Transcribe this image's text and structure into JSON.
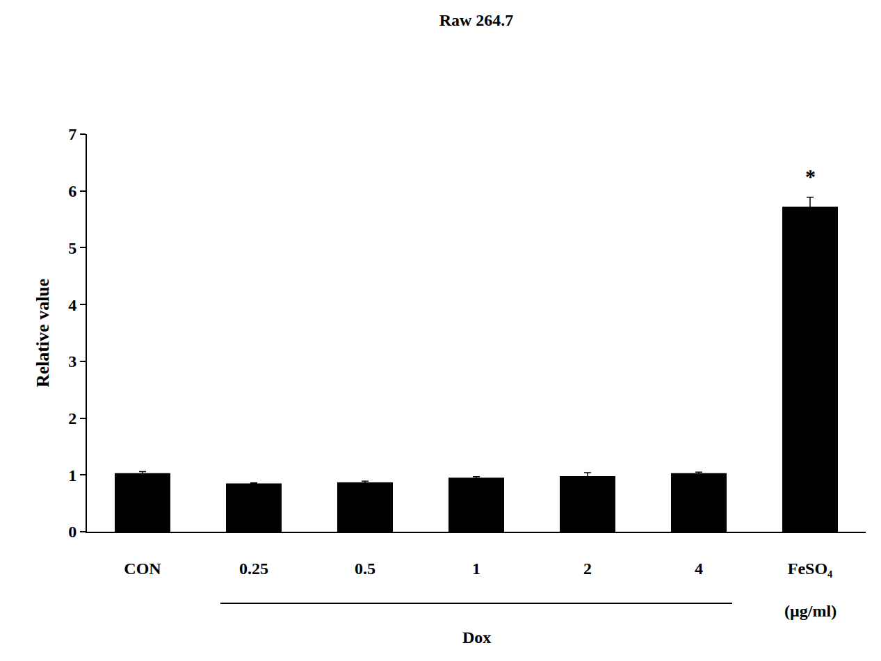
{
  "chart_data": {
    "type": "bar",
    "title": "Raw 264.7",
    "y_label": "Relative value",
    "categories": [
      "CON",
      "0.25",
      "0.5",
      "1",
      "2",
      "4",
      "FeSO₄"
    ],
    "values": [
      1.03,
      0.85,
      0.87,
      0.95,
      0.98,
      1.03,
      5.72
    ],
    "errors": [
      0.03,
      0.01,
      0.02,
      0.02,
      0.06,
      0.02,
      0.17
    ],
    "color": "#000000",
    "ylim": [
      0,
      7
    ],
    "yticks": [
      0,
      1,
      2,
      3,
      4,
      5,
      6,
      7
    ],
    "grid": false,
    "annotations": [
      {
        "text": "*",
        "at": "FeSO₄",
        "position": "above"
      },
      {
        "text": "(µg/ml)",
        "at": "FeSO₄",
        "position": "below"
      },
      {
        "text": "Dox",
        "from": "0.25",
        "to": "4",
        "position": "below"
      }
    ]
  }
}
